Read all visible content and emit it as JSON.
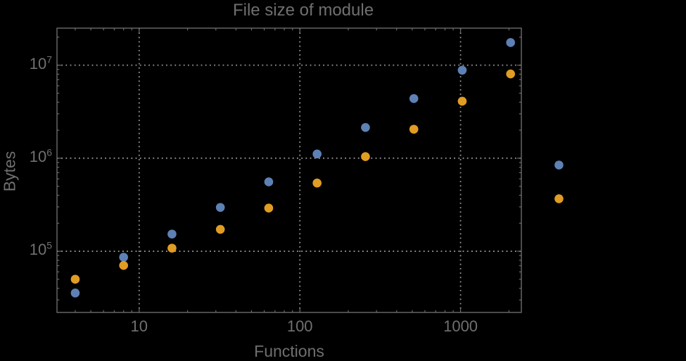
{
  "chart_data": {
    "type": "scatter",
    "title": "File size of module",
    "xlabel": "Functions",
    "ylabel": "Bytes",
    "x_scale": "log",
    "y_scale": "log",
    "xlim": [
      3.08,
      2390
    ],
    "ylim": [
      22000,
      25000000
    ],
    "grid": "dotted gridlines at labeled decades",
    "legend": "none",
    "plot_range_clipping": false,
    "x": [
      4,
      8,
      16,
      32,
      64,
      128,
      256,
      512,
      1024,
      2048,
      4096
    ],
    "series": [
      {
        "name": "series-blue",
        "color": "#5E81B5",
        "values": [
          35600,
          86300,
          153000,
          296000,
          557000,
          1110000,
          2140000,
          4380000,
          8830000,
          17500000,
          845000
        ]
      },
      {
        "name": "series-orange",
        "color": "#E19C24",
        "values": [
          50000,
          70400,
          108000,
          172000,
          291000,
          541000,
          1040000,
          2050000,
          4100000,
          8050000,
          367000
        ]
      }
    ],
    "x_ticks": [
      {
        "label": "10",
        "value": 10
      },
      {
        "label": "100",
        "value": 100
      },
      {
        "label": "1000",
        "value": 1000
      }
    ],
    "y_ticks": [
      {
        "base": "10",
        "exp": "5",
        "value": 100000
      },
      {
        "base": "10",
        "exp": "6",
        "value": 1000000
      },
      {
        "base": "10",
        "exp": "7",
        "value": 10000000
      }
    ]
  },
  "colors": {
    "background": "#000000",
    "frame": "#6b6b6b",
    "gridline": "#979797",
    "text": "#6f6f6f",
    "series_blue": "#5E81B5",
    "series_orange": "#E19C24"
  }
}
